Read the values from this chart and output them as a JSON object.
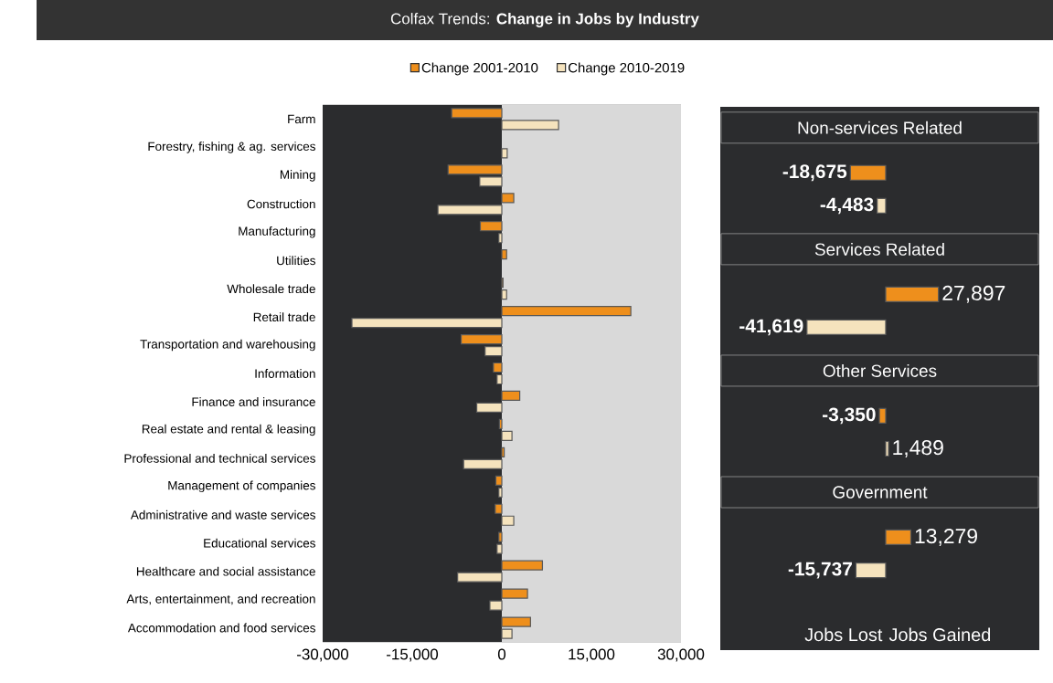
{
  "chart_data": [
    {
      "type": "bar",
      "orientation": "horizontal",
      "title": "Colfax Trends: **Change in Jobs by Industry**",
      "categories": [
        "Farm",
        "Forestry, fishing & ag. services",
        "Mining",
        "Construction",
        "Manufacturing",
        "Utilities",
        "Wholesale trade",
        "Retail trade",
        "Transportation and warehousing",
        "Information",
        "Finance and insurance",
        "Real estate and rental & leasing",
        "Professional and technical services",
        "Management of companies",
        "Administrative and waste services",
        "Educational services",
        "Healthcare and social assistance",
        "Arts, entertainment, and recreation",
        "Accommodation and food services"
      ],
      "series": [
        {
          "name": "Change 2001-2010",
          "color": "#ee8f1c",
          "values": [
            -8400,
            null,
            -9000,
            2000,
            -3600,
            800,
            200,
            21600,
            -6800,
            -1400,
            3000,
            -400,
            400,
            -1000,
            -1100,
            -500,
            6800,
            4300,
            4800
          ]
        },
        {
          "name": "Change 2010-2019",
          "color": "#f5e3bd",
          "values": [
            9500,
            900,
            -3700,
            -10700,
            -500,
            null,
            800,
            -25100,
            -2800,
            -800,
            -4200,
            1700,
            -6400,
            -500,
            2000,
            -800,
            -7400,
            -2000,
            1700
          ]
        }
      ],
      "xlim": [
        -30000,
        30000
      ],
      "xticks": [
        {
          "value": -30000,
          "label": "-30,000"
        },
        {
          "value": -15000,
          "label": "-15,000"
        },
        0,
        {
          "value": 15000,
          "label": "15,000"
        },
        {
          "value": 30000,
          "label": "30,000"
        }
      ],
      "bands": [
        {
          "axis": "x",
          "from": -30000,
          "to": 0,
          "color": "#2b2c2e"
        },
        {
          "axis": "x",
          "from": 0,
          "to": 30000,
          "color": "#d9d9d9"
        }
      ],
      "grid": "y",
      "legend": "top"
    },
    {
      "type": "bar",
      "orientation": "horizontal",
      "categories": [
        "Non-services Related",
        "Services Related",
        "Other Services",
        "Government"
      ],
      "series": [
        {
          "color": "#ee8f1c",
          "values": [
            -18675,
            27897,
            -3350,
            13279
          ],
          "value_labels": [
            "-18,675",
            "27,897",
            "-3,350",
            "13,279"
          ]
        },
        {
          "color": "#f5e3bd",
          "values": [
            -4483,
            -41619,
            1489,
            -15737
          ],
          "value_labels": [
            "-4,483",
            "-41,619",
            "1,489",
            "-15,737"
          ]
        }
      ],
      "annotations": [
        "Jobs Lost",
        "Jobs Gained"
      ]
    }
  ]
}
